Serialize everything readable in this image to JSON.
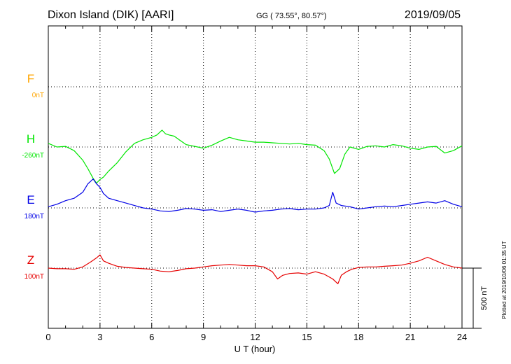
{
  "header": {
    "station": "Dixon Island (DIK)  [AARI]",
    "coords": "GG ( 73.55°,  80.57°)",
    "date": "2019/09/05"
  },
  "footer": {
    "plotted": "Plotted at 2019/10/06 01:35 UT"
  },
  "chart_data": {
    "type": "line",
    "title": "Dixon Island (DIK)  [AARI]",
    "subtitle": "GG ( 73.55°,  80.57°)",
    "date": "2019/09/05",
    "xlabel": "U T (hour)",
    "xlim": [
      0,
      24
    ],
    "xticks": [
      0,
      3,
      6,
      9,
      12,
      15,
      18,
      21,
      24
    ],
    "scale_bar": "500 nT",
    "grid": true,
    "series": [
      {
        "name": "F",
        "baseline": "0nT",
        "color": "#ffa500",
        "x": [],
        "values": []
      },
      {
        "name": "H",
        "baseline": "-260nT",
        "color": "#00e600",
        "x": [
          0,
          0.5,
          1.0,
          1.5,
          2.0,
          2.3,
          2.6,
          2.8,
          3.0,
          3.2,
          3.5,
          4.0,
          4.5,
          5.0,
          5.5,
          6.0,
          6.3,
          6.6,
          6.8,
          7.0,
          7.3,
          7.6,
          8.0,
          8.5,
          9.0,
          9.5,
          10.0,
          10.5,
          11.0,
          11.5,
          12.0,
          12.5,
          13.0,
          13.5,
          14.0,
          14.5,
          15.0,
          15.5,
          16.0,
          16.3,
          16.6,
          16.9,
          17.2,
          17.5,
          18.0,
          18.5,
          19.0,
          19.5,
          20.0,
          20.5,
          21.0,
          21.5,
          22.0,
          22.5,
          23.0,
          23.5,
          24.0
        ],
        "values": [
          30,
          0,
          5,
          -30,
          -110,
          -180,
          -260,
          -300,
          -270,
          -250,
          -200,
          -130,
          -40,
          30,
          60,
          80,
          100,
          140,
          110,
          100,
          90,
          60,
          20,
          5,
          -10,
          15,
          50,
          80,
          60,
          50,
          40,
          40,
          35,
          30,
          25,
          30,
          20,
          15,
          -30,
          -100,
          -220,
          -180,
          -60,
          0,
          -20,
          5,
          10,
          0,
          20,
          10,
          -10,
          -20,
          0,
          5,
          -50,
          -30,
          10
        ]
      },
      {
        "name": "E",
        "baseline": "180nT",
        "color": "#0000e6",
        "x": [
          0,
          0.5,
          1.0,
          1.5,
          2.0,
          2.3,
          2.6,
          2.8,
          3.0,
          3.2,
          3.5,
          4.0,
          4.5,
          5.0,
          5.5,
          6.0,
          6.5,
          7.0,
          7.5,
          8.0,
          8.5,
          9.0,
          9.5,
          10.0,
          10.5,
          11.0,
          11.5,
          12.0,
          12.5,
          13.0,
          13.5,
          14.0,
          14.5,
          15.0,
          15.5,
          16.0,
          16.3,
          16.5,
          16.7,
          17.0,
          17.5,
          18.0,
          18.5,
          19.0,
          19.5,
          20.0,
          20.5,
          21.0,
          21.5,
          22.0,
          22.5,
          23.0,
          23.5,
          24.0
        ],
        "values": [
          10,
          30,
          60,
          80,
          130,
          200,
          240,
          200,
          170,
          120,
          80,
          60,
          40,
          20,
          0,
          -10,
          -25,
          -30,
          -20,
          -5,
          -10,
          -20,
          -15,
          -30,
          -20,
          -10,
          -20,
          -35,
          -25,
          -20,
          -10,
          -5,
          -15,
          -10,
          -10,
          0,
          20,
          130,
          40,
          20,
          10,
          -10,
          0,
          10,
          15,
          10,
          20,
          30,
          40,
          50,
          40,
          60,
          30,
          10
        ]
      },
      {
        "name": "Z",
        "baseline": "100nT",
        "color": "#e60000",
        "x": [
          0,
          0.5,
          1.0,
          1.5,
          2.0,
          2.5,
          2.8,
          3.0,
          3.2,
          3.5,
          4.0,
          4.5,
          5.0,
          5.5,
          6.0,
          6.5,
          7.0,
          7.5,
          8.0,
          8.5,
          9.0,
          9.5,
          10.0,
          10.5,
          11.0,
          11.5,
          12.0,
          12.5,
          13.0,
          13.3,
          13.6,
          14.0,
          14.5,
          15.0,
          15.5,
          16.0,
          16.5,
          16.8,
          17.0,
          17.3,
          17.6,
          18.0,
          18.5,
          19.0,
          19.5,
          20.0,
          20.5,
          21.0,
          21.5,
          22.0,
          22.5,
          23.0,
          23.5,
          24.0
        ],
        "values": [
          0,
          -5,
          -5,
          -10,
          10,
          55,
          85,
          110,
          60,
          40,
          15,
          5,
          0,
          -5,
          -10,
          -25,
          -30,
          -20,
          -5,
          0,
          10,
          20,
          25,
          30,
          25,
          20,
          20,
          10,
          -30,
          -90,
          -60,
          -45,
          -40,
          -50,
          -30,
          -50,
          -90,
          -130,
          -60,
          -30,
          -10,
          5,
          10,
          10,
          15,
          20,
          25,
          40,
          60,
          90,
          60,
          30,
          10,
          0
        ]
      }
    ]
  }
}
